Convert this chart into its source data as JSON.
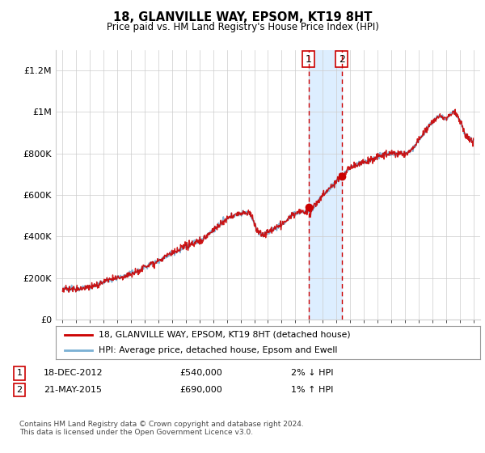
{
  "title": "18, GLANVILLE WAY, EPSOM, KT19 8HT",
  "subtitle": "Price paid vs. HM Land Registry's House Price Index (HPI)",
  "ylabel_ticks": [
    "£0",
    "£200K",
    "£400K",
    "£600K",
    "£800K",
    "£1M",
    "£1.2M"
  ],
  "ytick_values": [
    0,
    200000,
    400000,
    600000,
    800000,
    1000000,
    1200000
  ],
  "ylim": [
    0,
    1300000
  ],
  "xlim_start": 1994.5,
  "xlim_end": 2025.5,
  "sale1_date": 2012.96,
  "sale1_price": 540000,
  "sale1_label": "1",
  "sale2_date": 2015.38,
  "sale2_price": 690000,
  "sale2_label": "2",
  "legend_line1": "18, GLANVILLE WAY, EPSOM, KT19 8HT (detached house)",
  "legend_line2": "HPI: Average price, detached house, Epsom and Ewell",
  "footnote": "Contains HM Land Registry data © Crown copyright and database right 2024.\nThis data is licensed under the Open Government Licence v3.0.",
  "line_color_red": "#cc0000",
  "line_color_blue": "#7ab0d4",
  "shaded_region_color": "#ddeeff",
  "grid_color": "#cccccc",
  "background_color": "#ffffff"
}
